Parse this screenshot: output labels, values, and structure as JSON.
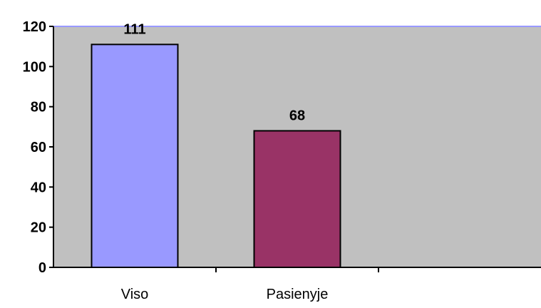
{
  "chart_data": {
    "type": "bar",
    "categories": [
      "Viso",
      "Pasienyje",
      ""
    ],
    "values": [
      111,
      68,
      null
    ],
    "data_labels": [
      "111",
      "68",
      ""
    ],
    "y_ticks": [
      "0",
      "20",
      "40",
      "60",
      "80",
      "100",
      "120"
    ],
    "ylim": [
      0,
      120
    ],
    "title": "",
    "xlabel": "",
    "ylabel": "",
    "grid": false,
    "legend": "none",
    "colors": {
      "plot_background": "#c0c0c0",
      "bar_colors": [
        "#9999ff",
        "#993366"
      ],
      "top_line": "#9999ff",
      "axis": "#000000"
    }
  }
}
